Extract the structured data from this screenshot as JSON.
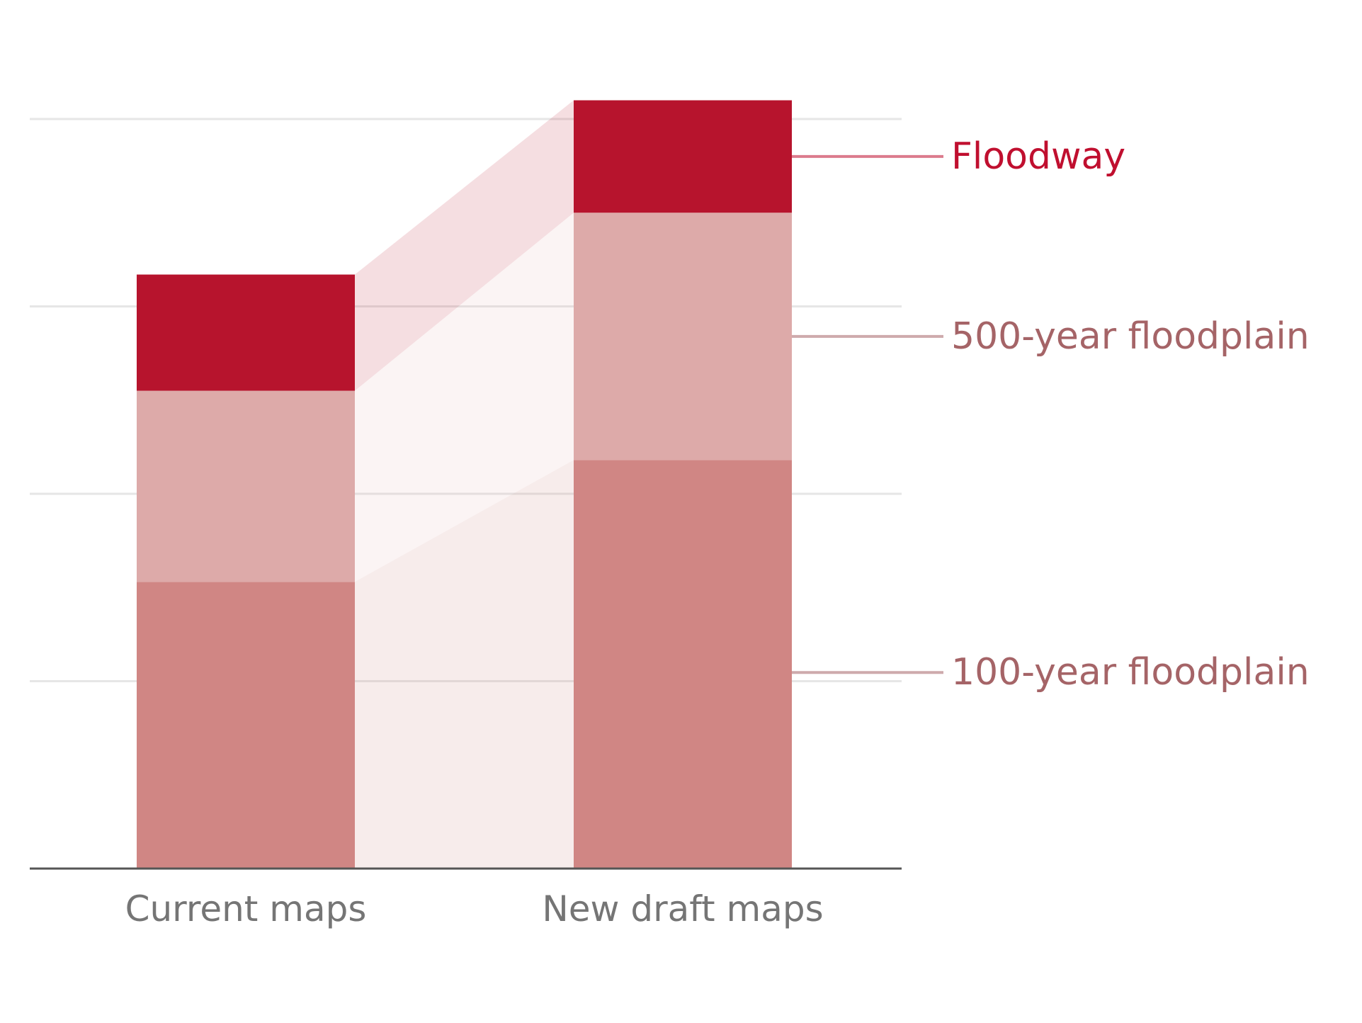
{
  "chart_data": {
    "type": "bar",
    "stacked": true,
    "title": "",
    "xlabel": "",
    "ylabel": "",
    "categories": [
      "Current maps",
      "New draft maps"
    ],
    "series": [
      {
        "name": "100-year floodplain",
        "values": [
          1.53,
          2.18
        ],
        "color": "#d08684"
      },
      {
        "name": "500-year floodplain",
        "values": [
          1.02,
          1.32
        ],
        "color": "#ddaaa9"
      },
      {
        "name": "Floodway",
        "values": [
          0.62,
          0.6
        ],
        "color": "#b7142d"
      }
    ],
    "legend_colors": [
      "#a56467",
      "#a56467",
      "#c00f2f"
    ],
    "ylim": [
      0,
      4
    ],
    "yticks": [
      1,
      2,
      3,
      4
    ],
    "grid": true,
    "legend": "right",
    "connectors": true
  }
}
